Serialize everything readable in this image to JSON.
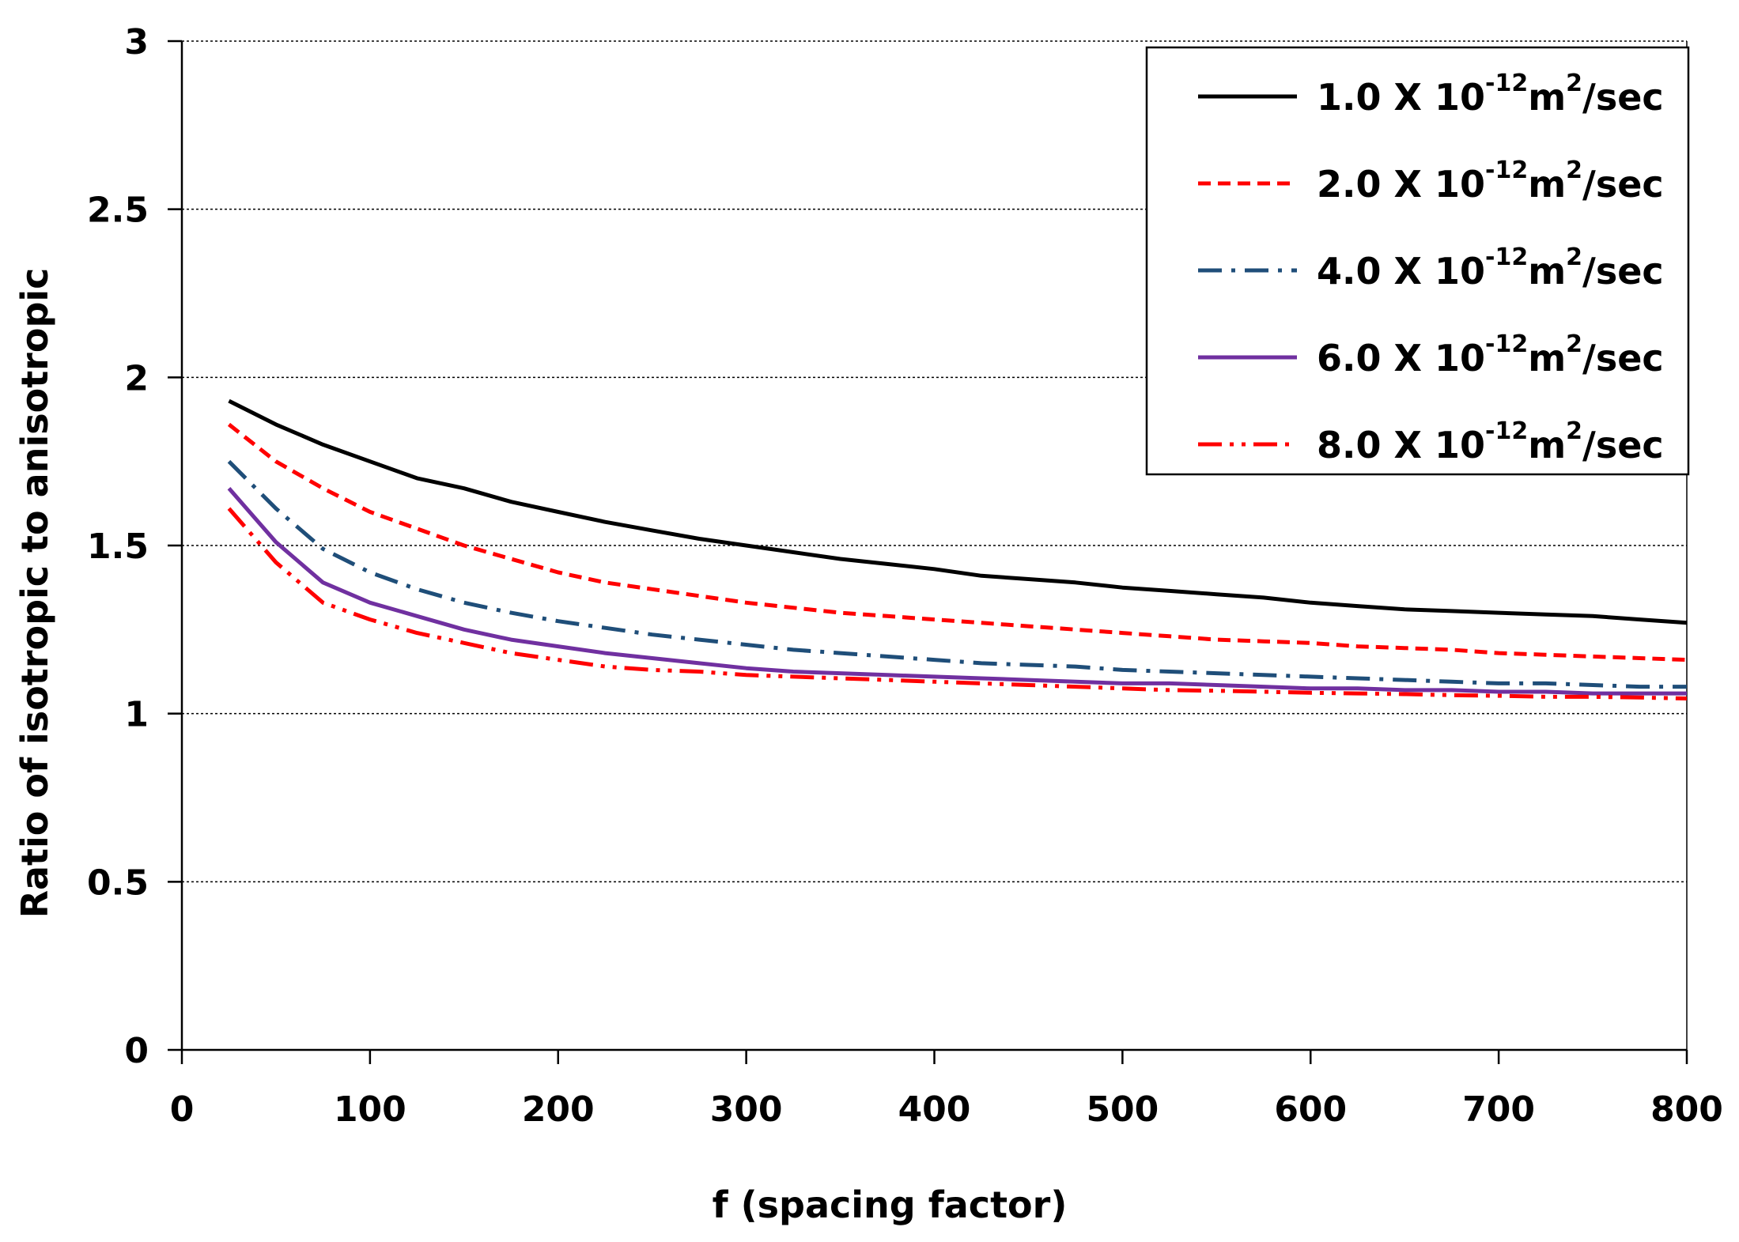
{
  "chart_data": {
    "type": "line",
    "title": "",
    "xlabel": "f (spacing factor)",
    "ylabel": "Ratio of isotropic to anisotropic",
    "xlim": [
      0,
      800
    ],
    "ylim": [
      0,
      3
    ],
    "xticks": [
      0,
      100,
      200,
      300,
      400,
      500,
      600,
      700,
      800
    ],
    "yticks": [
      0,
      0.5,
      1,
      1.5,
      2,
      2.5,
      3
    ],
    "xtick_labels": [
      "0",
      "100",
      "200",
      "300",
      "400",
      "500",
      "600",
      "700",
      "800"
    ],
    "ytick_labels": [
      "0",
      "0.5",
      "1",
      "1.5",
      "2",
      "2.5",
      "3"
    ],
    "grid": "horizontal dotted",
    "legend_position": "top-right",
    "x": [
      25,
      50,
      75,
      100,
      125,
      150,
      175,
      200,
      225,
      250,
      275,
      300,
      325,
      350,
      375,
      400,
      425,
      450,
      475,
      500,
      525,
      550,
      575,
      600,
      625,
      650,
      675,
      700,
      725,
      750,
      775,
      800
    ],
    "series": [
      {
        "name": "1.0 X 10-12 m2/sec",
        "legend": {
          "mantissa": "1.0 X 10",
          "exp": "-12",
          "unit_base": "m",
          "unit_exp": "2",
          "unit_tail": "/sec"
        },
        "color": "#000000",
        "dash": "solid",
        "values": [
          1.93,
          1.86,
          1.8,
          1.75,
          1.7,
          1.67,
          1.63,
          1.6,
          1.57,
          1.545,
          1.52,
          1.5,
          1.48,
          1.46,
          1.445,
          1.43,
          1.41,
          1.4,
          1.39,
          1.375,
          1.365,
          1.355,
          1.345,
          1.33,
          1.32,
          1.31,
          1.305,
          1.3,
          1.295,
          1.29,
          1.28,
          1.27
        ]
      },
      {
        "name": "2.0 X 10-12 m2/sec",
        "legend": {
          "mantissa": "2.0 X 10",
          "exp": "-12",
          "unit_base": "m",
          "unit_exp": "2",
          "unit_tail": "/sec"
        },
        "color": "#ff0000",
        "dash": "dashed",
        "values": [
          1.86,
          1.75,
          1.67,
          1.6,
          1.55,
          1.5,
          1.46,
          1.42,
          1.39,
          1.37,
          1.35,
          1.33,
          1.315,
          1.3,
          1.29,
          1.28,
          1.27,
          1.26,
          1.25,
          1.24,
          1.23,
          1.22,
          1.215,
          1.21,
          1.2,
          1.195,
          1.19,
          1.18,
          1.175,
          1.17,
          1.165,
          1.16
        ]
      },
      {
        "name": "4.0 X 10-12 m2/sec",
        "legend": {
          "mantissa": "4.0 X 10",
          "exp": "-12",
          "unit_base": "m",
          "unit_exp": "2",
          "unit_tail": "/sec"
        },
        "color": "#1f4e79",
        "dash": "dash-dot",
        "values": [
          1.75,
          1.61,
          1.49,
          1.42,
          1.37,
          1.33,
          1.3,
          1.275,
          1.255,
          1.235,
          1.22,
          1.205,
          1.19,
          1.18,
          1.17,
          1.16,
          1.15,
          1.145,
          1.14,
          1.13,
          1.125,
          1.12,
          1.115,
          1.11,
          1.105,
          1.1,
          1.095,
          1.09,
          1.09,
          1.085,
          1.08,
          1.08
        ]
      },
      {
        "name": "6.0 X 10-12 m2/sec",
        "legend": {
          "mantissa": "6.0 X 10",
          "exp": "-12",
          "unit_base": "m",
          "unit_exp": "2",
          "unit_tail": "/sec"
        },
        "color": "#7030a0",
        "dash": "solid",
        "values": [
          1.67,
          1.51,
          1.39,
          1.33,
          1.29,
          1.25,
          1.22,
          1.2,
          1.18,
          1.165,
          1.15,
          1.135,
          1.125,
          1.12,
          1.115,
          1.11,
          1.105,
          1.1,
          1.095,
          1.09,
          1.09,
          1.085,
          1.08,
          1.075,
          1.075,
          1.07,
          1.07,
          1.065,
          1.065,
          1.06,
          1.06,
          1.06
        ]
      },
      {
        "name": "8.0 X 10-12 m2/sec",
        "legend": {
          "mantissa": "8.0 X 10",
          "exp": "-12",
          "unit_base": "m",
          "unit_exp": "2",
          "unit_tail": "/sec"
        },
        "color": "#ff0000",
        "dash": "dash-dot-dot",
        "values": [
          1.61,
          1.45,
          1.33,
          1.28,
          1.24,
          1.21,
          1.18,
          1.16,
          1.14,
          1.13,
          1.125,
          1.115,
          1.11,
          1.105,
          1.1,
          1.095,
          1.09,
          1.085,
          1.08,
          1.075,
          1.07,
          1.068,
          1.065,
          1.062,
          1.06,
          1.058,
          1.055,
          1.053,
          1.05,
          1.05,
          1.048,
          1.045
        ]
      }
    ]
  }
}
